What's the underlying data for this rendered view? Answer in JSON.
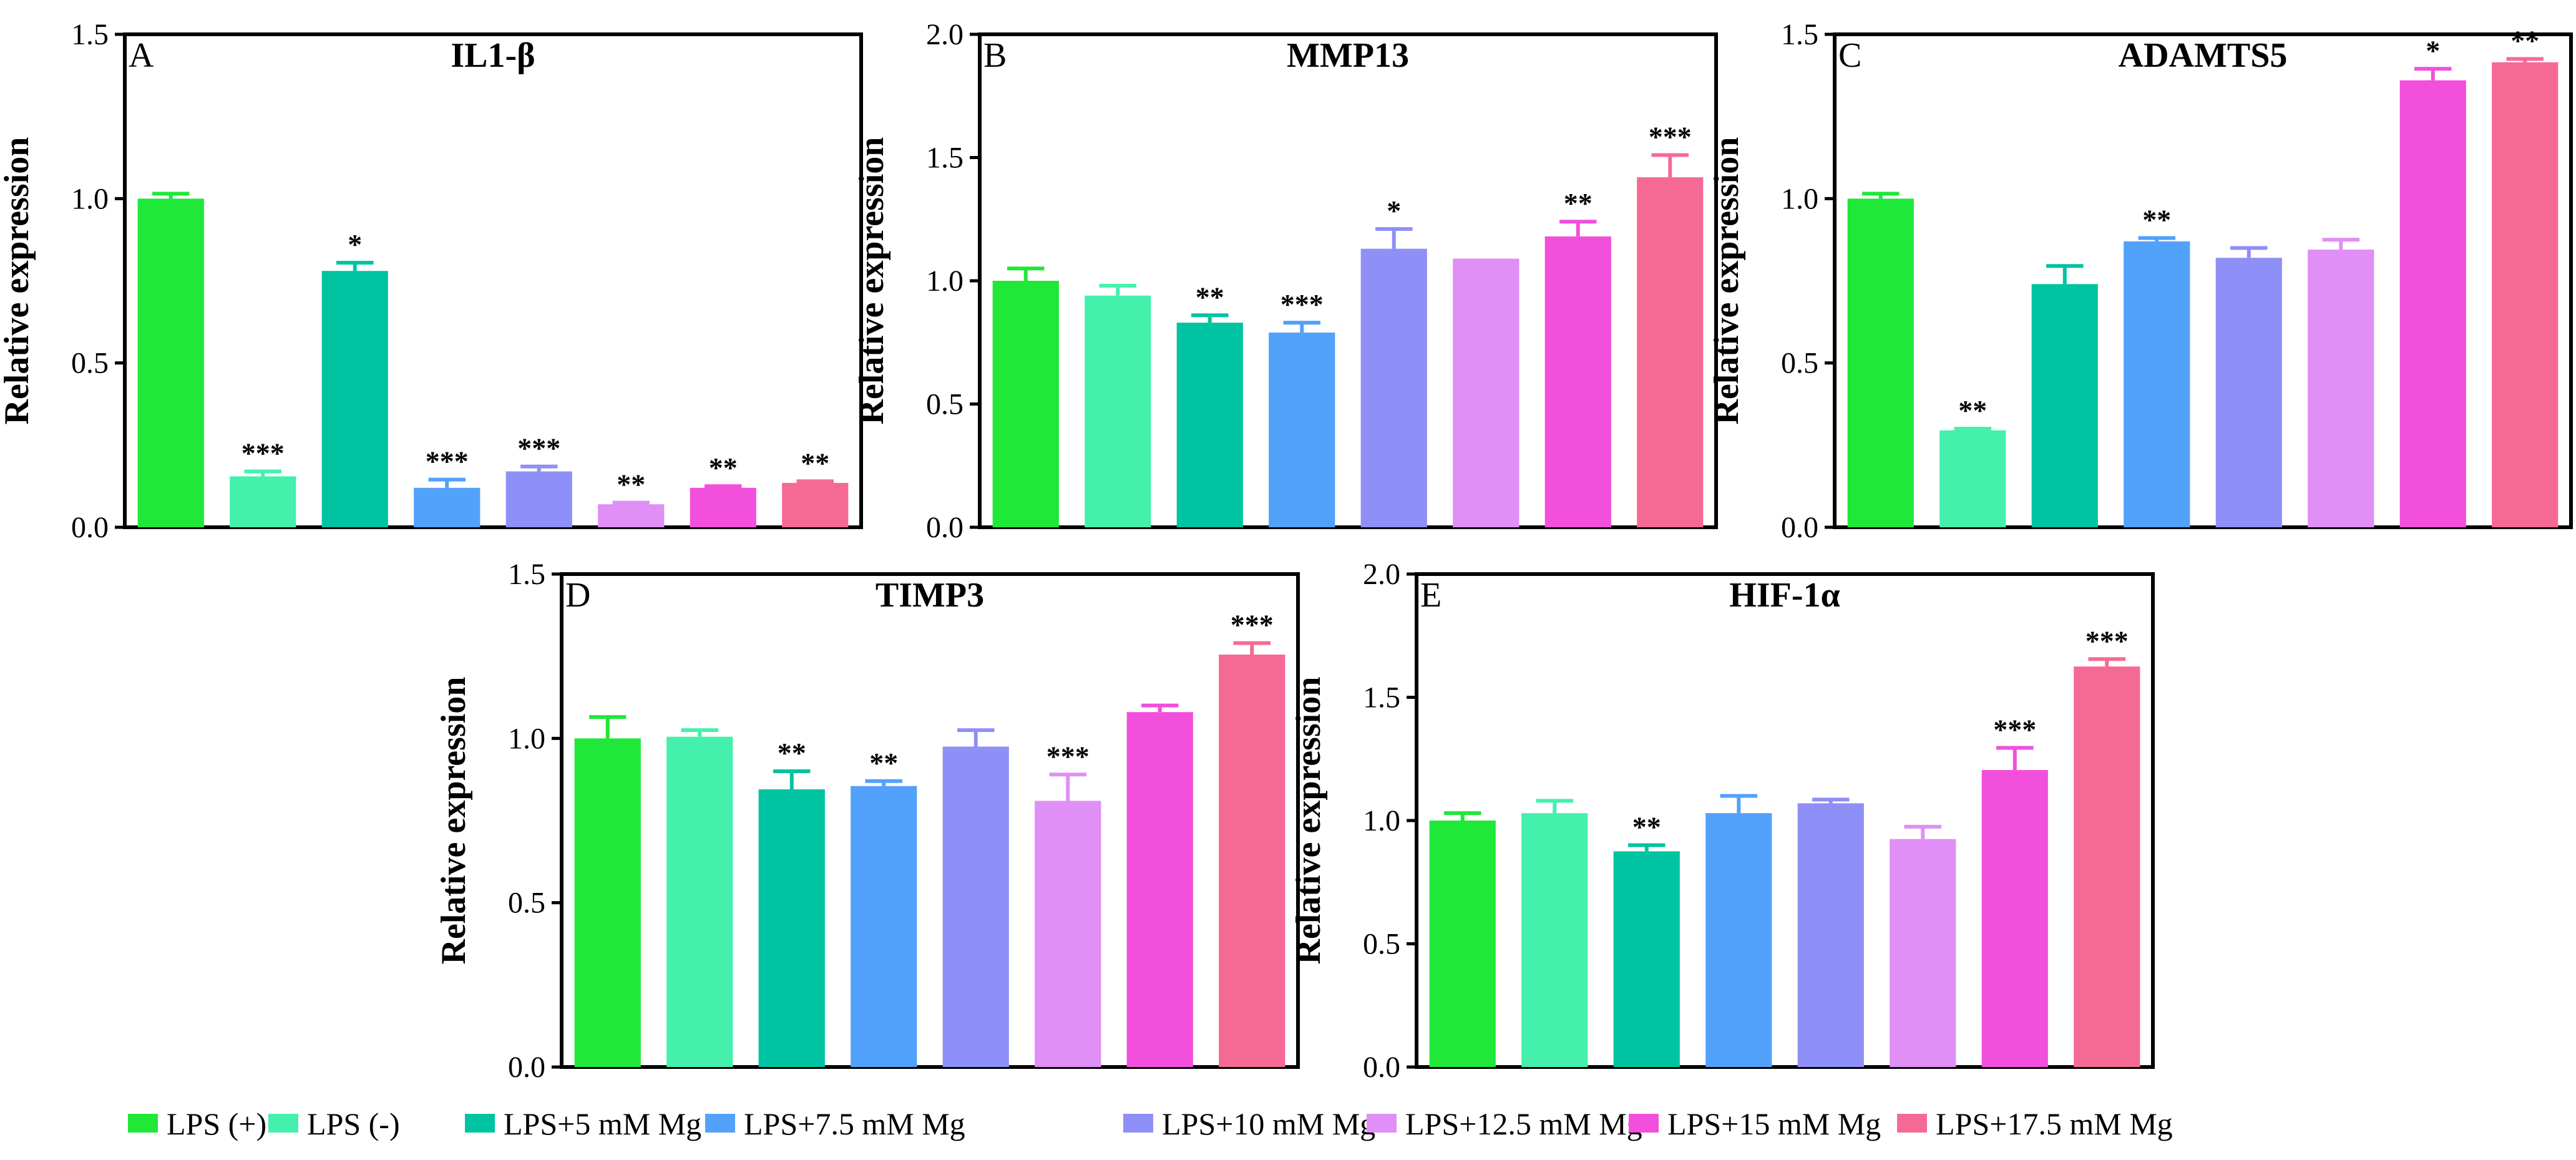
{
  "figure": {
    "background": "#ffffff"
  },
  "groups": [
    "LPS (+)",
    "LPS (-)",
    "LPS+5 mM Mg",
    "LPS+7.5 mM Mg",
    "LPS+10 mM Mg",
    "LPS+12.5 mM Mg",
    "LPS+15 mM Mg",
    "LPS+17.5 mM Mg"
  ],
  "colors": [
    "#1fe838",
    "#44f0ac",
    "#00c3a2",
    "#52a1fa",
    "#8f8ff8",
    "#df8ff5",
    "#f24fdd",
    "#f56a94"
  ],
  "legend": {
    "items": [
      {
        "label": "LPS (+)",
        "color": "#1fe838"
      },
      {
        "label": "LPS (-)",
        "color": "#44f0ac"
      },
      {
        "label": "LPS+5 mM Mg",
        "color": "#00c3a2"
      },
      {
        "label": "LPS+7.5 mM Mg",
        "color": "#52a1fa"
      },
      {
        "label": "LPS+10 mM Mg",
        "color": "#8f8ff8"
      },
      {
        "label": "LPS+12.5 mM Mg",
        "color": "#df8ff5"
      },
      {
        "label": "LPS+15 mM Mg",
        "color": "#f24fdd"
      },
      {
        "label": "LPS+17.5 mM Mg",
        "color": "#f56a94"
      }
    ]
  },
  "chart_data": [
    {
      "type": "bar",
      "panel": "A",
      "title": "IL1-β",
      "ylabel": "Relative expression",
      "xlabel": "",
      "ylim": [
        0,
        1.5
      ],
      "yticks": [
        "0.0",
        "0.5",
        "1.0",
        "1.5"
      ],
      "categories": [
        "LPS (+)",
        "LPS (-)",
        "LPS+5 mM Mg",
        "LPS+7.5 mM Mg",
        "LPS+10 mM Mg",
        "LPS+12.5 mM Mg",
        "LPS+15 mM Mg",
        "LPS+17.5 mM Mg"
      ],
      "values": [
        1.0,
        0.155,
        0.78,
        0.12,
        0.17,
        0.07,
        0.12,
        0.135
      ],
      "errors": [
        0.015,
        0.015,
        0.025,
        0.025,
        0.015,
        0.005,
        0.005,
        0.005
      ],
      "significance": [
        "",
        "***",
        "*",
        "***",
        "***",
        "**",
        "**",
        "**"
      ]
    },
    {
      "type": "bar",
      "panel": "B",
      "title": "MMP13",
      "ylabel": "Relative expression",
      "xlabel": "",
      "ylim": [
        0,
        2.0
      ],
      "yticks": [
        "0.0",
        "0.5",
        "1.0",
        "1.5",
        "2.0"
      ],
      "categories": [
        "LPS (+)",
        "LPS (-)",
        "LPS+5 mM Mg",
        "LPS+7.5 mM Mg",
        "LPS+10 mM Mg",
        "LPS+12.5 mM Mg",
        "LPS+15 mM Mg",
        "LPS+17.5 mM Mg"
      ],
      "values": [
        1.0,
        0.94,
        0.83,
        0.79,
        1.13,
        1.09,
        1.18,
        1.42
      ],
      "errors": [
        0.05,
        0.04,
        0.03,
        0.04,
        0.08,
        0.0,
        0.06,
        0.09
      ],
      "significance": [
        "",
        "",
        "**",
        "***",
        "*",
        "",
        "**",
        "***"
      ]
    },
    {
      "type": "bar",
      "panel": "C",
      "title": "ADAMTS5",
      "ylabel": "Relative expression",
      "xlabel": "",
      "ylim": [
        0,
        1.5
      ],
      "yticks": [
        "0.0",
        "0.5",
        "1.0",
        "1.5"
      ],
      "categories": [
        "LPS (+)",
        "LPS (-)",
        "LPS+5 mM Mg",
        "LPS+7.5 mM Mg",
        "LPS+10 mM Mg",
        "LPS+12.5 mM Mg",
        "LPS+15 mM Mg",
        "LPS+17.5 mM Mg"
      ],
      "values": [
        1.0,
        0.295,
        0.74,
        0.87,
        0.82,
        0.845,
        1.36,
        1.415
      ],
      "errors": [
        0.015,
        0.005,
        0.055,
        0.01,
        0.03,
        0.03,
        0.035,
        0.01
      ],
      "significance": [
        "",
        "**",
        "",
        "**",
        "",
        "",
        "*",
        "**"
      ]
    },
    {
      "type": "bar",
      "panel": "D",
      "title": "TIMP3",
      "ylabel": "Relative expression",
      "xlabel": "",
      "ylim": [
        0,
        1.5
      ],
      "yticks": [
        "0.0",
        "0.5",
        "1.0",
        "1.5"
      ],
      "categories": [
        "LPS (+)",
        "LPS (-)",
        "LPS+5 mM Mg",
        "LPS+7.5 mM Mg",
        "LPS+10 mM Mg",
        "LPS+12.5 mM Mg",
        "LPS+15 mM Mg",
        "LPS+17.5 mM Mg"
      ],
      "values": [
        1.0,
        1.005,
        0.845,
        0.855,
        0.975,
        0.81,
        1.08,
        1.255
      ],
      "errors": [
        0.065,
        0.02,
        0.055,
        0.015,
        0.05,
        0.08,
        0.02,
        0.035
      ],
      "significance": [
        "",
        "",
        "**",
        "**",
        "",
        "***",
        "",
        "***"
      ]
    },
    {
      "type": "bar",
      "panel": "E",
      "title": "HIF-1α",
      "ylabel": "Relative expression",
      "xlabel": "",
      "ylim": [
        0,
        2.0
      ],
      "yticks": [
        "0.0",
        "0.5",
        "1.0",
        "1.5",
        "2.0"
      ],
      "categories": [
        "LPS (+)",
        "LPS (-)",
        "LPS+5 mM Mg",
        "LPS+7.5 mM Mg",
        "LPS+10 mM Mg",
        "LPS+12.5 mM Mg",
        "LPS+15 mM Mg",
        "LPS+17.5 mM Mg"
      ],
      "values": [
        1.0,
        1.03,
        0.875,
        1.03,
        1.07,
        0.925,
        1.205,
        1.625
      ],
      "errors": [
        0.03,
        0.05,
        0.025,
        0.07,
        0.015,
        0.05,
        0.09,
        0.03
      ],
      "significance": [
        "",
        "",
        "**",
        "",
        "",
        "",
        "***",
        "***"
      ]
    }
  ]
}
